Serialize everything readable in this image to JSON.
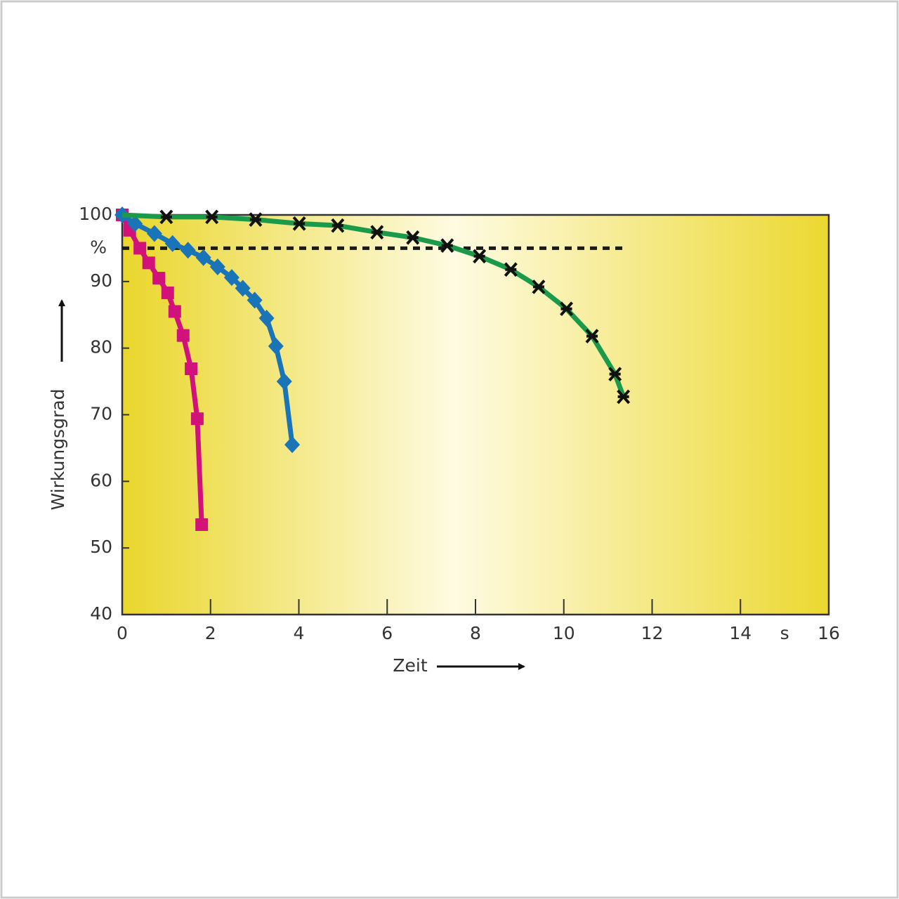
{
  "chart_data": {
    "type": "line",
    "y_label": "Wirkungsgrad",
    "x_label": "Zeit",
    "y_unit": "%",
    "x_unit": "s",
    "xlim": [
      0,
      16
    ],
    "xticks": [
      0,
      2,
      4,
      6,
      8,
      10,
      12,
      14,
      16
    ],
    "ylim": [
      40,
      100
    ],
    "yticks": [
      40,
      50,
      60,
      70,
      80,
      90,
      100
    ],
    "reference_line": {
      "value": 95,
      "x": [
        0,
        11.35
      ],
      "color": "#1a1a1a"
    },
    "series": [
      {
        "color": "#d0127a",
        "marker": "square",
        "x": [
          0,
          0.17,
          0.4,
          0.6,
          0.83,
          1.03,
          1.19,
          1.38,
          1.56,
          1.7,
          1.8
        ],
        "values": [
          100,
          97.7,
          95.0,
          92.8,
          90.5,
          88.3,
          85.5,
          81.9,
          76.9,
          69.4,
          53.5
        ]
      },
      {
        "color": "#1a74b8",
        "marker": "diamond",
        "x": [
          0,
          0.29,
          0.73,
          1.14,
          1.49,
          1.84,
          2.16,
          2.48,
          2.73,
          3.0,
          3.27,
          3.48,
          3.67,
          3.85
        ],
        "values": [
          100,
          98.7,
          97.2,
          95.7,
          94.7,
          93.6,
          92.2,
          90.6,
          89.0,
          87.2,
          84.5,
          80.3,
          75.0,
          65.5
        ]
      },
      {
        "color": "#1a9a4a",
        "marker": "cross",
        "x": [
          0,
          1.0,
          2.03,
          3.02,
          4.01,
          4.88,
          5.77,
          6.58,
          7.36,
          8.09,
          8.8,
          9.43,
          10.06,
          10.64,
          11.16,
          11.35
        ],
        "values": [
          100,
          99.7,
          99.7,
          99.3,
          98.7,
          98.4,
          97.4,
          96.6,
          95.4,
          93.8,
          91.8,
          89.2,
          85.9,
          81.8,
          76.1,
          72.7
        ]
      }
    ]
  }
}
